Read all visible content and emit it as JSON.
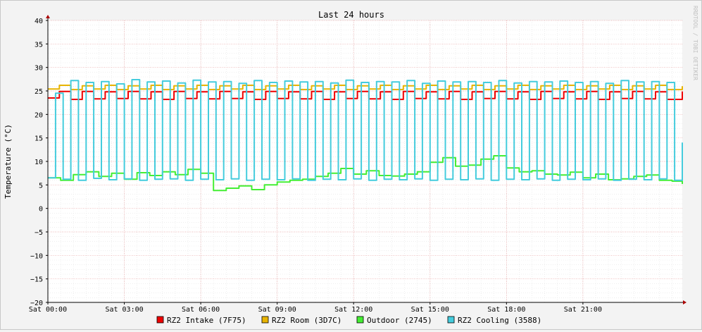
{
  "chart_data": {
    "type": "line",
    "title": "Last 24 hours",
    "ylabel": "Temperature (°C)",
    "xlabel": "",
    "watermark": "RRDTOOL / TOBI OETIKER",
    "ylim": [
      -20,
      40
    ],
    "yticks": [
      40,
      35,
      30,
      25,
      20,
      15,
      10,
      5,
      0,
      -5,
      -10,
      -15,
      -20
    ],
    "xlim": [
      0,
      24.9
    ],
    "xticks": [
      {
        "value": 0,
        "label": "Sat 00:00"
      },
      {
        "value": 3,
        "label": "Sat 03:00"
      },
      {
        "value": 6,
        "label": "Sat 06:00"
      },
      {
        "value": 9,
        "label": "Sat 09:00"
      },
      {
        "value": 12,
        "label": "Sat 12:00"
      },
      {
        "value": 15,
        "label": "Sat 15:00"
      },
      {
        "value": 18,
        "label": "Sat 18:00"
      },
      {
        "value": 21,
        "label": "Sat 21:00"
      }
    ],
    "grid": true,
    "legend_position": "bottom",
    "series": [
      {
        "name": "RZ2 Intake (7F75)",
        "color": "#ee0000",
        "x": [
          0,
          0.45,
          0.9,
          1.35,
          1.8,
          2.25,
          2.7,
          3.15,
          3.6,
          4.05,
          4.5,
          4.95,
          5.4,
          5.85,
          6.3,
          6.75,
          7.2,
          7.65,
          8.1,
          8.55,
          9.0,
          9.45,
          9.9,
          10.35,
          10.8,
          11.25,
          11.7,
          12.15,
          12.6,
          13.05,
          13.5,
          13.95,
          14.4,
          14.85,
          15.3,
          15.75,
          16.2,
          16.65,
          17.1,
          17.55,
          18.0,
          18.45,
          18.9,
          19.35,
          19.8,
          20.25,
          20.7,
          21.15,
          21.6,
          22.05,
          22.5,
          22.95,
          23.4,
          23.85,
          24.3,
          24.9
        ],
        "values": [
          23.5,
          24.9,
          23.2,
          24.9,
          23.3,
          24.8,
          23.4,
          24.9,
          23.3,
          24.8,
          23.2,
          24.9,
          23.4,
          24.8,
          23.3,
          24.9,
          23.4,
          24.8,
          23.2,
          24.9,
          23.4,
          24.8,
          23.3,
          24.9,
          23.2,
          24.8,
          23.4,
          24.9,
          23.3,
          24.8,
          23.2,
          24.9,
          23.4,
          24.8,
          23.3,
          24.9,
          23.2,
          24.8,
          23.4,
          24.9,
          23.3,
          24.8,
          23.2,
          24.9,
          23.4,
          24.8,
          23.3,
          24.9,
          23.2,
          24.8,
          23.4,
          24.9,
          23.3,
          24.8,
          23.2,
          24.9
        ]
      },
      {
        "name": "RZ2 Room (3D7C)",
        "color": "#e8b400",
        "x": [
          0,
          0.45,
          0.9,
          1.35,
          1.8,
          2.25,
          2.7,
          3.15,
          3.6,
          4.05,
          4.5,
          4.95,
          5.4,
          5.85,
          6.3,
          6.75,
          7.2,
          7.65,
          8.1,
          8.55,
          9.0,
          9.45,
          9.9,
          10.35,
          10.8,
          11.25,
          11.7,
          12.15,
          12.6,
          13.05,
          13.5,
          13.95,
          14.4,
          14.85,
          15.3,
          15.75,
          16.2,
          16.65,
          17.1,
          17.55,
          18.0,
          18.45,
          18.9,
          19.35,
          19.8,
          20.25,
          20.7,
          21.15,
          21.6,
          22.05,
          22.5,
          22.95,
          23.4,
          23.85,
          24.3,
          24.9
        ],
        "values": [
          25.4,
          26.2,
          25.3,
          26.1,
          25.4,
          26.2,
          25.3,
          26.1,
          25.4,
          26.2,
          25.3,
          26.1,
          25.4,
          26.2,
          25.3,
          26.1,
          25.4,
          26.2,
          25.3,
          26.1,
          25.4,
          26.2,
          25.3,
          26.1,
          25.4,
          26.2,
          25.3,
          26.1,
          25.4,
          26.2,
          25.3,
          26.1,
          25.4,
          26.2,
          25.3,
          26.1,
          25.4,
          26.2,
          25.3,
          26.1,
          25.4,
          26.2,
          25.3,
          26.1,
          25.4,
          26.2,
          25.3,
          26.1,
          25.4,
          26.2,
          25.3,
          26.1,
          25.4,
          26.2,
          25.3,
          26.0
        ]
      },
      {
        "name": "Outdoor (2745)",
        "color": "#44ee33",
        "x": [
          0,
          0.5,
          1.0,
          1.5,
          2.0,
          2.5,
          3.0,
          3.5,
          4.0,
          4.5,
          5.0,
          5.5,
          6.0,
          6.5,
          7.0,
          7.5,
          8.0,
          8.5,
          9.0,
          9.5,
          10.0,
          10.5,
          11.0,
          11.5,
          12.0,
          12.5,
          13.0,
          13.5,
          14.0,
          14.5,
          15.0,
          15.5,
          16.0,
          16.5,
          17.0,
          17.5,
          18.0,
          18.5,
          19.0,
          19.5,
          20.0,
          20.5,
          21.0,
          21.5,
          22.0,
          22.5,
          23.0,
          23.5,
          24.0,
          24.5,
          24.9
        ],
        "values": [
          6.5,
          6.0,
          7.2,
          7.8,
          6.8,
          7.5,
          6.2,
          7.6,
          7.0,
          7.8,
          7.2,
          8.3,
          7.5,
          3.8,
          4.3,
          4.8,
          4.0,
          5.0,
          5.6,
          6.0,
          6.2,
          6.8,
          7.5,
          8.5,
          7.3,
          8.0,
          7.0,
          6.9,
          7.3,
          7.8,
          9.8,
          10.8,
          9.0,
          9.2,
          10.5,
          11.2,
          8.6,
          7.8,
          8.0,
          7.3,
          7.1,
          7.7,
          6.5,
          7.3,
          6.1,
          6.3,
          6.8,
          7.1,
          6.0,
          5.8,
          5.2
        ]
      },
      {
        "name": "RZ2 Cooling (3588)",
        "color": "#44ccdd",
        "x": [
          0,
          0.3,
          0.6,
          0.9,
          1.2,
          1.5,
          1.8,
          2.1,
          2.4,
          2.7,
          3.0,
          3.3,
          3.6,
          3.9,
          4.2,
          4.5,
          4.8,
          5.1,
          5.4,
          5.7,
          6.0,
          6.3,
          6.6,
          6.9,
          7.2,
          7.5,
          7.8,
          8.1,
          8.4,
          8.7,
          9.0,
          9.3,
          9.6,
          9.9,
          10.2,
          10.5,
          10.8,
          11.1,
          11.4,
          11.7,
          12.0,
          12.3,
          12.6,
          12.9,
          13.2,
          13.5,
          13.8,
          14.1,
          14.4,
          14.7,
          15.0,
          15.3,
          15.6,
          15.9,
          16.2,
          16.5,
          16.8,
          17.1,
          17.4,
          17.7,
          18.0,
          18.3,
          18.6,
          18.9,
          19.2,
          19.5,
          19.8,
          20.1,
          20.4,
          20.7,
          21.0,
          21.3,
          21.6,
          21.9,
          22.2,
          22.5,
          22.8,
          23.1,
          23.4,
          23.7,
          24.0,
          24.3,
          24.6,
          24.9
        ],
        "values": [
          6.5,
          24.5,
          6.2,
          27.2,
          6.0,
          26.8,
          6.4,
          27.0,
          6.1,
          26.5,
          6.3,
          27.4,
          6.0,
          26.9,
          6.2,
          27.1,
          6.3,
          26.7,
          6.0,
          27.3,
          6.2,
          26.9,
          6.1,
          27.0,
          6.3,
          26.6,
          6.0,
          27.2,
          6.2,
          26.8,
          6.1,
          27.1,
          6.3,
          26.9,
          6.0,
          27.0,
          6.2,
          26.7,
          6.1,
          27.3,
          6.3,
          26.8,
          6.0,
          27.0,
          6.2,
          26.9,
          6.1,
          27.2,
          6.3,
          26.6,
          6.0,
          27.1,
          6.2,
          26.9,
          6.1,
          27.0,
          6.3,
          26.8,
          6.0,
          27.2,
          6.2,
          26.7,
          6.1,
          27.0,
          6.3,
          26.9,
          6.0,
          27.1,
          6.2,
          26.8,
          6.1,
          27.0,
          6.3,
          26.6,
          6.0,
          27.2,
          6.2,
          26.9,
          6.1,
          27.0,
          6.3,
          26.8,
          6.0,
          14.0
        ]
      }
    ]
  }
}
